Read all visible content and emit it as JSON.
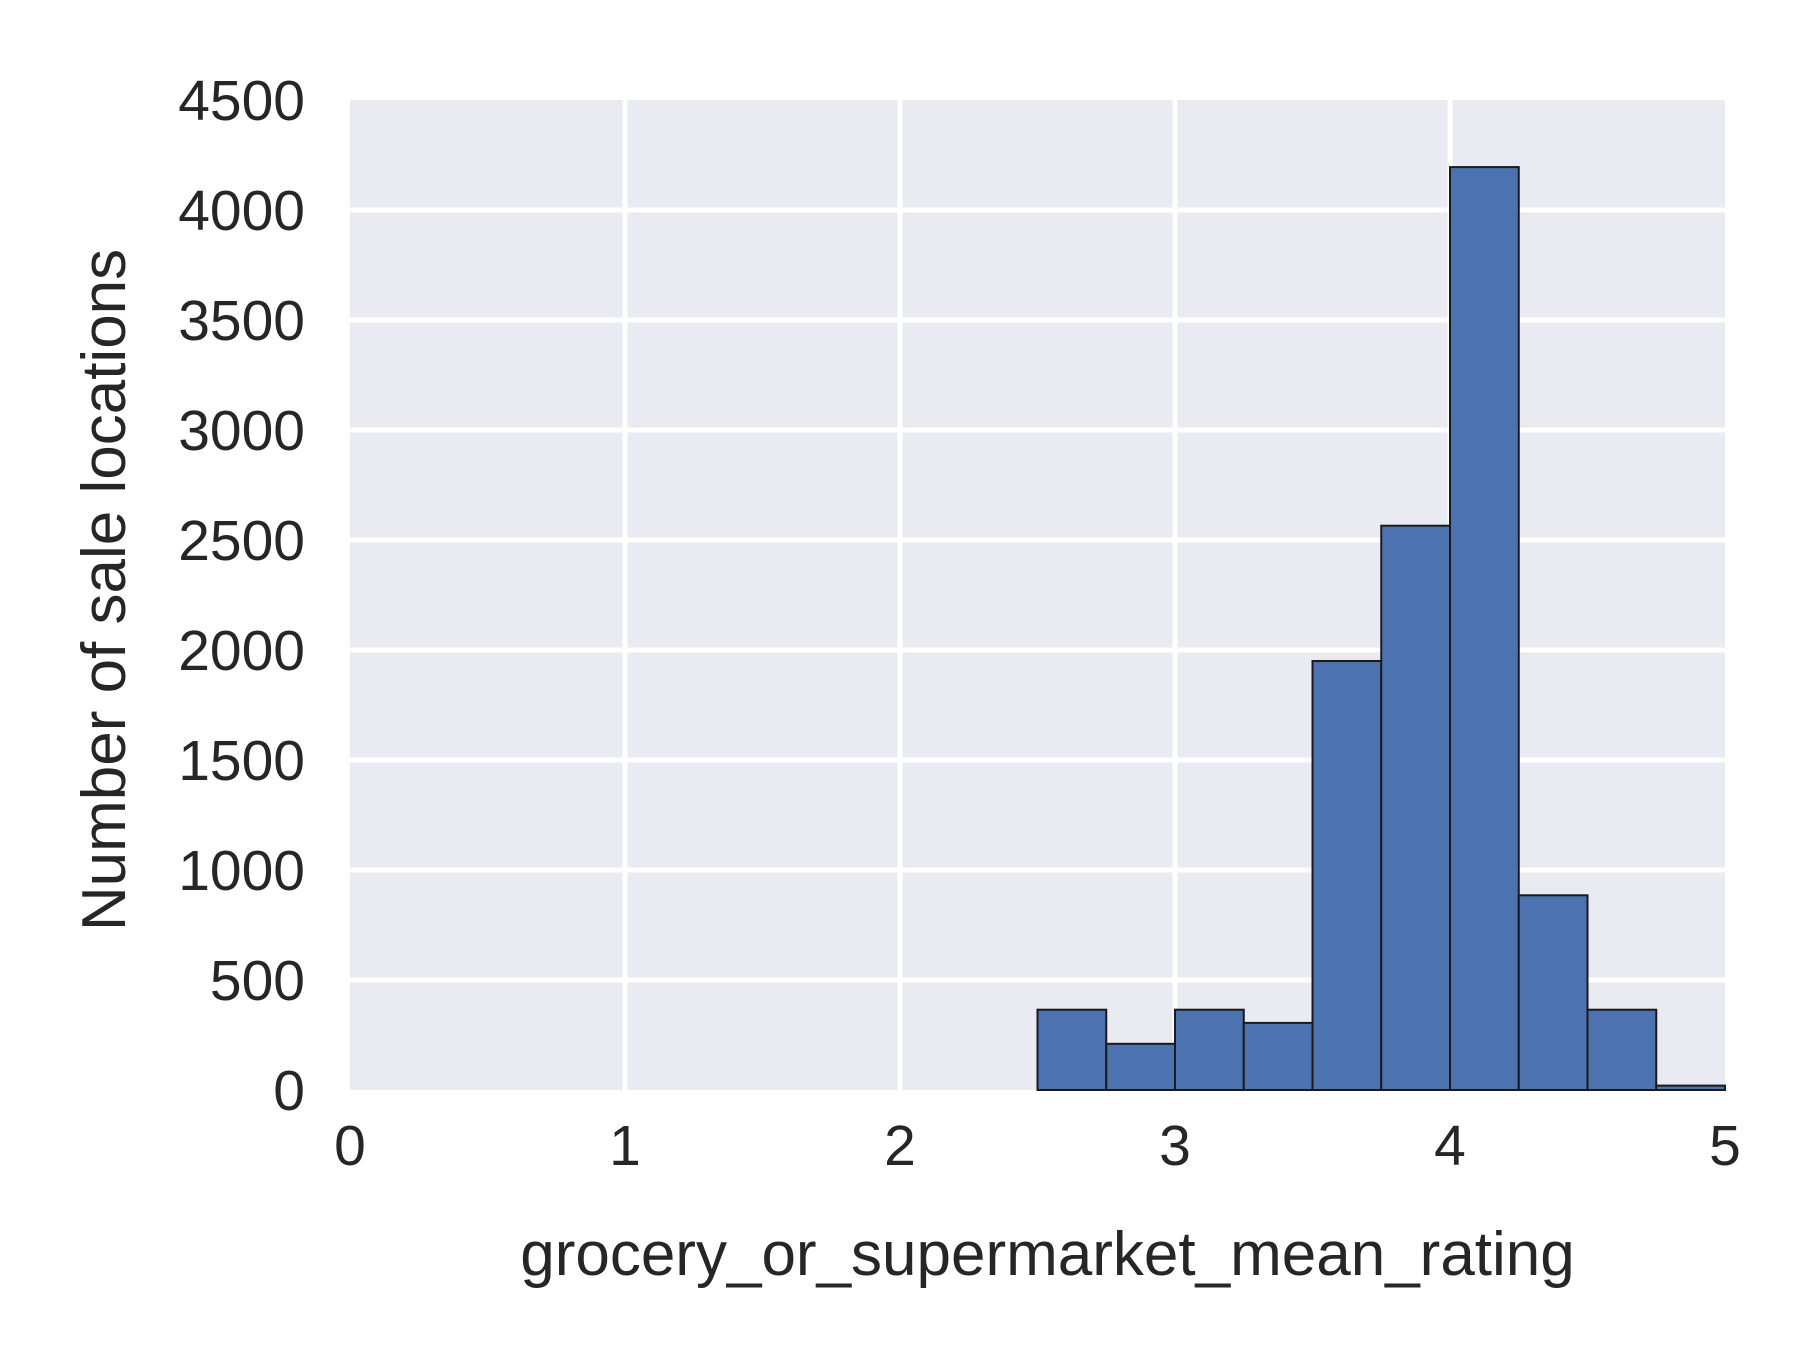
{
  "chart_data": {
    "type": "bar",
    "title": "",
    "xlabel": "grocery_or_supermarket_mean_rating",
    "ylabel": "Number of sale locations",
    "xlim": [
      0,
      5
    ],
    "ylim": [
      0,
      4500
    ],
    "x_ticks": [
      "0",
      "1",
      "2",
      "3",
      "4",
      "5"
    ],
    "y_ticks": [
      "0",
      "500",
      "1000",
      "1500",
      "2000",
      "2500",
      "3000",
      "3500",
      "4000",
      "4500"
    ],
    "bin_width": 0.25,
    "bins": [
      {
        "x0": 0.0,
        "value": 0
      },
      {
        "x0": 0.25,
        "value": 0
      },
      {
        "x0": 0.5,
        "value": 0
      },
      {
        "x0": 0.75,
        "value": 0
      },
      {
        "x0": 1.0,
        "value": 0
      },
      {
        "x0": 1.25,
        "value": 0
      },
      {
        "x0": 1.5,
        "value": 0
      },
      {
        "x0": 1.75,
        "value": 0
      },
      {
        "x0": 2.0,
        "value": 0
      },
      {
        "x0": 2.25,
        "value": 0
      },
      {
        "x0": 2.5,
        "value": 365
      },
      {
        "x0": 2.75,
        "value": 210
      },
      {
        "x0": 3.0,
        "value": 365
      },
      {
        "x0": 3.25,
        "value": 305
      },
      {
        "x0": 3.5,
        "value": 1950
      },
      {
        "x0": 3.75,
        "value": 2565
      },
      {
        "x0": 4.0,
        "value": 4195
      },
      {
        "x0": 4.25,
        "value": 885
      },
      {
        "x0": 4.5,
        "value": 365
      },
      {
        "x0": 4.75,
        "value": 20
      }
    ],
    "grid": true,
    "colors": {
      "bar": "#4c72b0",
      "bar_edge": "#1a1a1a",
      "plot_bg": "#eaeaf2",
      "grid": "#ffffff",
      "text": "#262626"
    }
  }
}
